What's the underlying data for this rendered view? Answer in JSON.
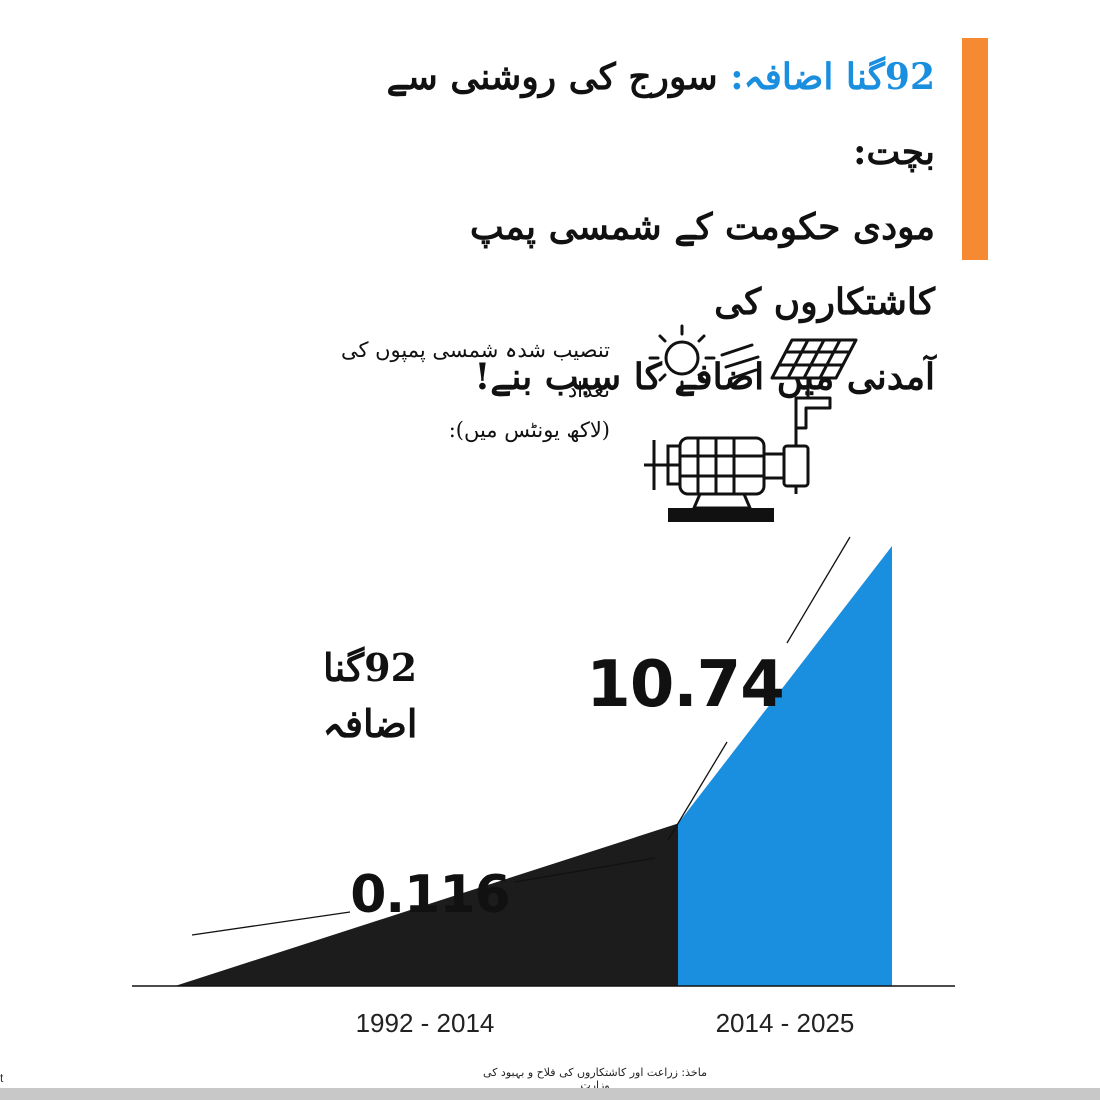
{
  "header": {
    "title_accent": "92گنا اضافہ:",
    "title_line1": " سورج کی روشنی سے بچت:",
    "title_line2": "مودی حکومت کے شمسی پمپ کاشتکاروں کی",
    "title_line3": "آمدنی میں اضافے کا سبب بنے!"
  },
  "subtitle": {
    "line1": "تنصیب شدہ شمسی پمپوں کی تعداد",
    "line2": "(لاکھ یونٹس میں):"
  },
  "growth_label": {
    "line1": "92گنا",
    "line2": "اضافہ"
  },
  "source": "ماخذ: زراعت اور کاشتکاروں کی فلاح و بہبود کی وزارت",
  "corner_mark": "t",
  "icons": [
    "sun-icon",
    "sun-rays-icon",
    "solar-panel-icon",
    "motor-pump-icon"
  ],
  "colors": {
    "accent": "#1a8fe0",
    "orange_bar": "#f58a32",
    "dark_series": "#1c1c1c",
    "blue_series": "#1a8fe0"
  },
  "chart_data": {
    "type": "area",
    "title": "تنصیب شدہ شمسی پمپوں کی تعداد (لاکھ یونٹس میں):",
    "categories": [
      "1992  -  2014",
      "2014  -  2025"
    ],
    "series": [
      {
        "period": "1992  -  2014",
        "value": 0.116,
        "label": "0.116",
        "color": "#1c1c1c"
      },
      {
        "period": "2014  -  2025",
        "value": 10.74,
        "label": "10.74",
        "color": "#1a8fe0"
      }
    ],
    "annotation": "92گنا اضافہ",
    "yaxis_visible": false,
    "grid": false
  }
}
